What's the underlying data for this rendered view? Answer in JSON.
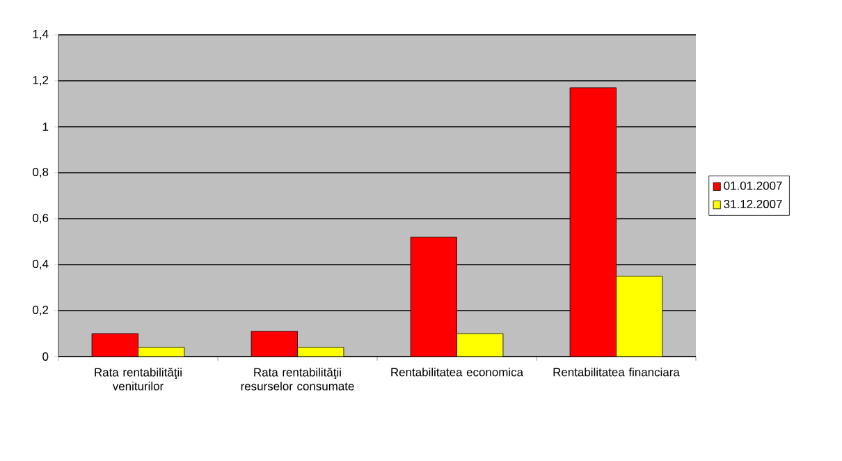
{
  "chart_data": {
    "type": "bar",
    "categories": [
      "Rata rentabilităţii veniturilor",
      "Rata rentabilităţii resurselor consumate",
      "Rentabilitatea economica",
      "Rentabilitatea financiara"
    ],
    "series": [
      {
        "name": "01.01.2007",
        "color": "#ff0000",
        "values": [
          0.1,
          0.11,
          0.52,
          1.17
        ]
      },
      {
        "name": "31.12.2007",
        "color": "#ffff00",
        "values": [
          0.04,
          0.04,
          0.1,
          0.35
        ]
      }
    ],
    "ylim": [
      0,
      1.4
    ],
    "yticks": [
      {
        "value": 0,
        "label": "0"
      },
      {
        "value": 0.2,
        "label": "0,2"
      },
      {
        "value": 0.4,
        "label": "0,4"
      },
      {
        "value": 0.6,
        "label": "0,6"
      },
      {
        "value": 0.8,
        "label": "0,8"
      },
      {
        "value": 1,
        "label": "1"
      },
      {
        "value": 1.2,
        "label": "1,2"
      },
      {
        "value": 1.4,
        "label": "1,4"
      }
    ],
    "grid": "y",
    "legend": "right"
  }
}
